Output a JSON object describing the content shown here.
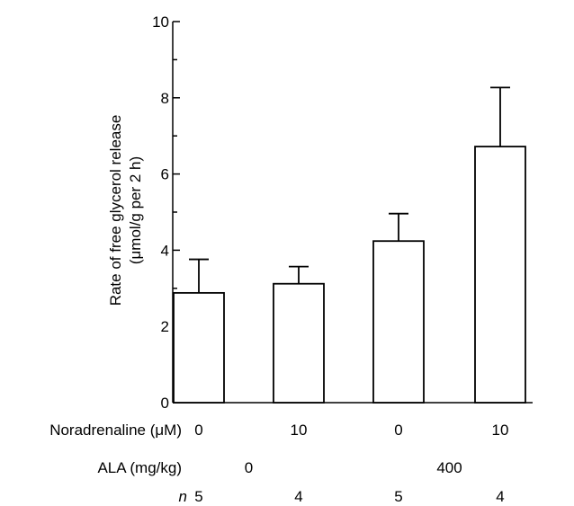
{
  "chart_data": {
    "type": "bar",
    "ylabel_line1": "Rate of free glycerol release",
    "ylabel_line2": "(μmol/g per 2 h)",
    "ylim": [
      0,
      10
    ],
    "yticks": [
      0,
      2,
      4,
      6,
      8,
      10
    ],
    "ytick_labels": [
      "0",
      "2",
      "4",
      "6",
      "8",
      "10"
    ],
    "values": [
      2.88,
      3.12,
      4.24,
      6.72
    ],
    "errors": [
      0.88,
      0.45,
      0.72,
      1.55
    ],
    "grid": false,
    "colors": {
      "bar_fill": "#ffffff",
      "stroke": "#000000"
    },
    "rows": [
      {
        "label": "Noradrenaline (μM)",
        "values": [
          "0",
          "10",
          "0",
          "10"
        ]
      },
      {
        "label": "ALA (mg/kg)",
        "groups": [
          "0",
          "400"
        ]
      },
      {
        "label": "n",
        "values": [
          "5",
          "4",
          "5",
          "4"
        ]
      }
    ]
  }
}
